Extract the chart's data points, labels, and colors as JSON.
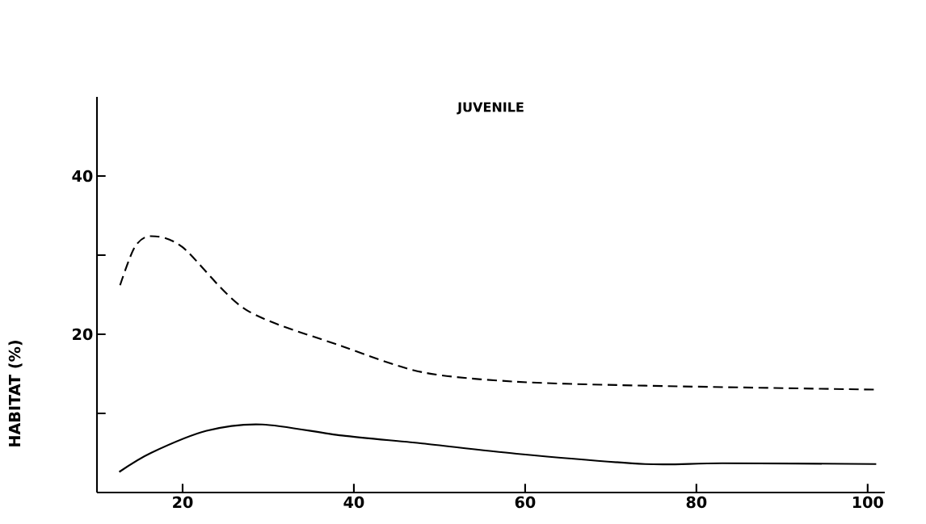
{
  "chart_data": {
    "type": "line",
    "title": "JUVENILE",
    "ylabel": "HABITAT (%)",
    "xlim": [
      10,
      102
    ],
    "ylim": [
      0,
      50
    ],
    "xticks": [
      20,
      40,
      60,
      80,
      100
    ],
    "yticks": [
      {
        "value": 10,
        "label": null
      },
      20,
      {
        "value": 30,
        "label": null
      },
      40
    ],
    "series": [
      {
        "color": "#000000",
        "line_style": "dashed",
        "x": [
          12.7,
          14.4,
          16.3,
          20,
          27.4,
          38.6,
          48,
          59,
          74,
          101
        ],
        "values": [
          26.2,
          31,
          32.4,
          31,
          23.1,
          18.5,
          15.2,
          14.0,
          13.5,
          13.0
        ]
      },
      {
        "color": "#000000",
        "line_style": "solid",
        "x": [
          12.6,
          16.3,
          22.8,
          29.3,
          38.6,
          48,
          59,
          74,
          83,
          101
        ],
        "values": [
          2.6,
          5,
          7.8,
          8.6,
          7.2,
          6.2,
          4.9,
          3.6,
          3.7,
          3.6
        ]
      }
    ]
  }
}
